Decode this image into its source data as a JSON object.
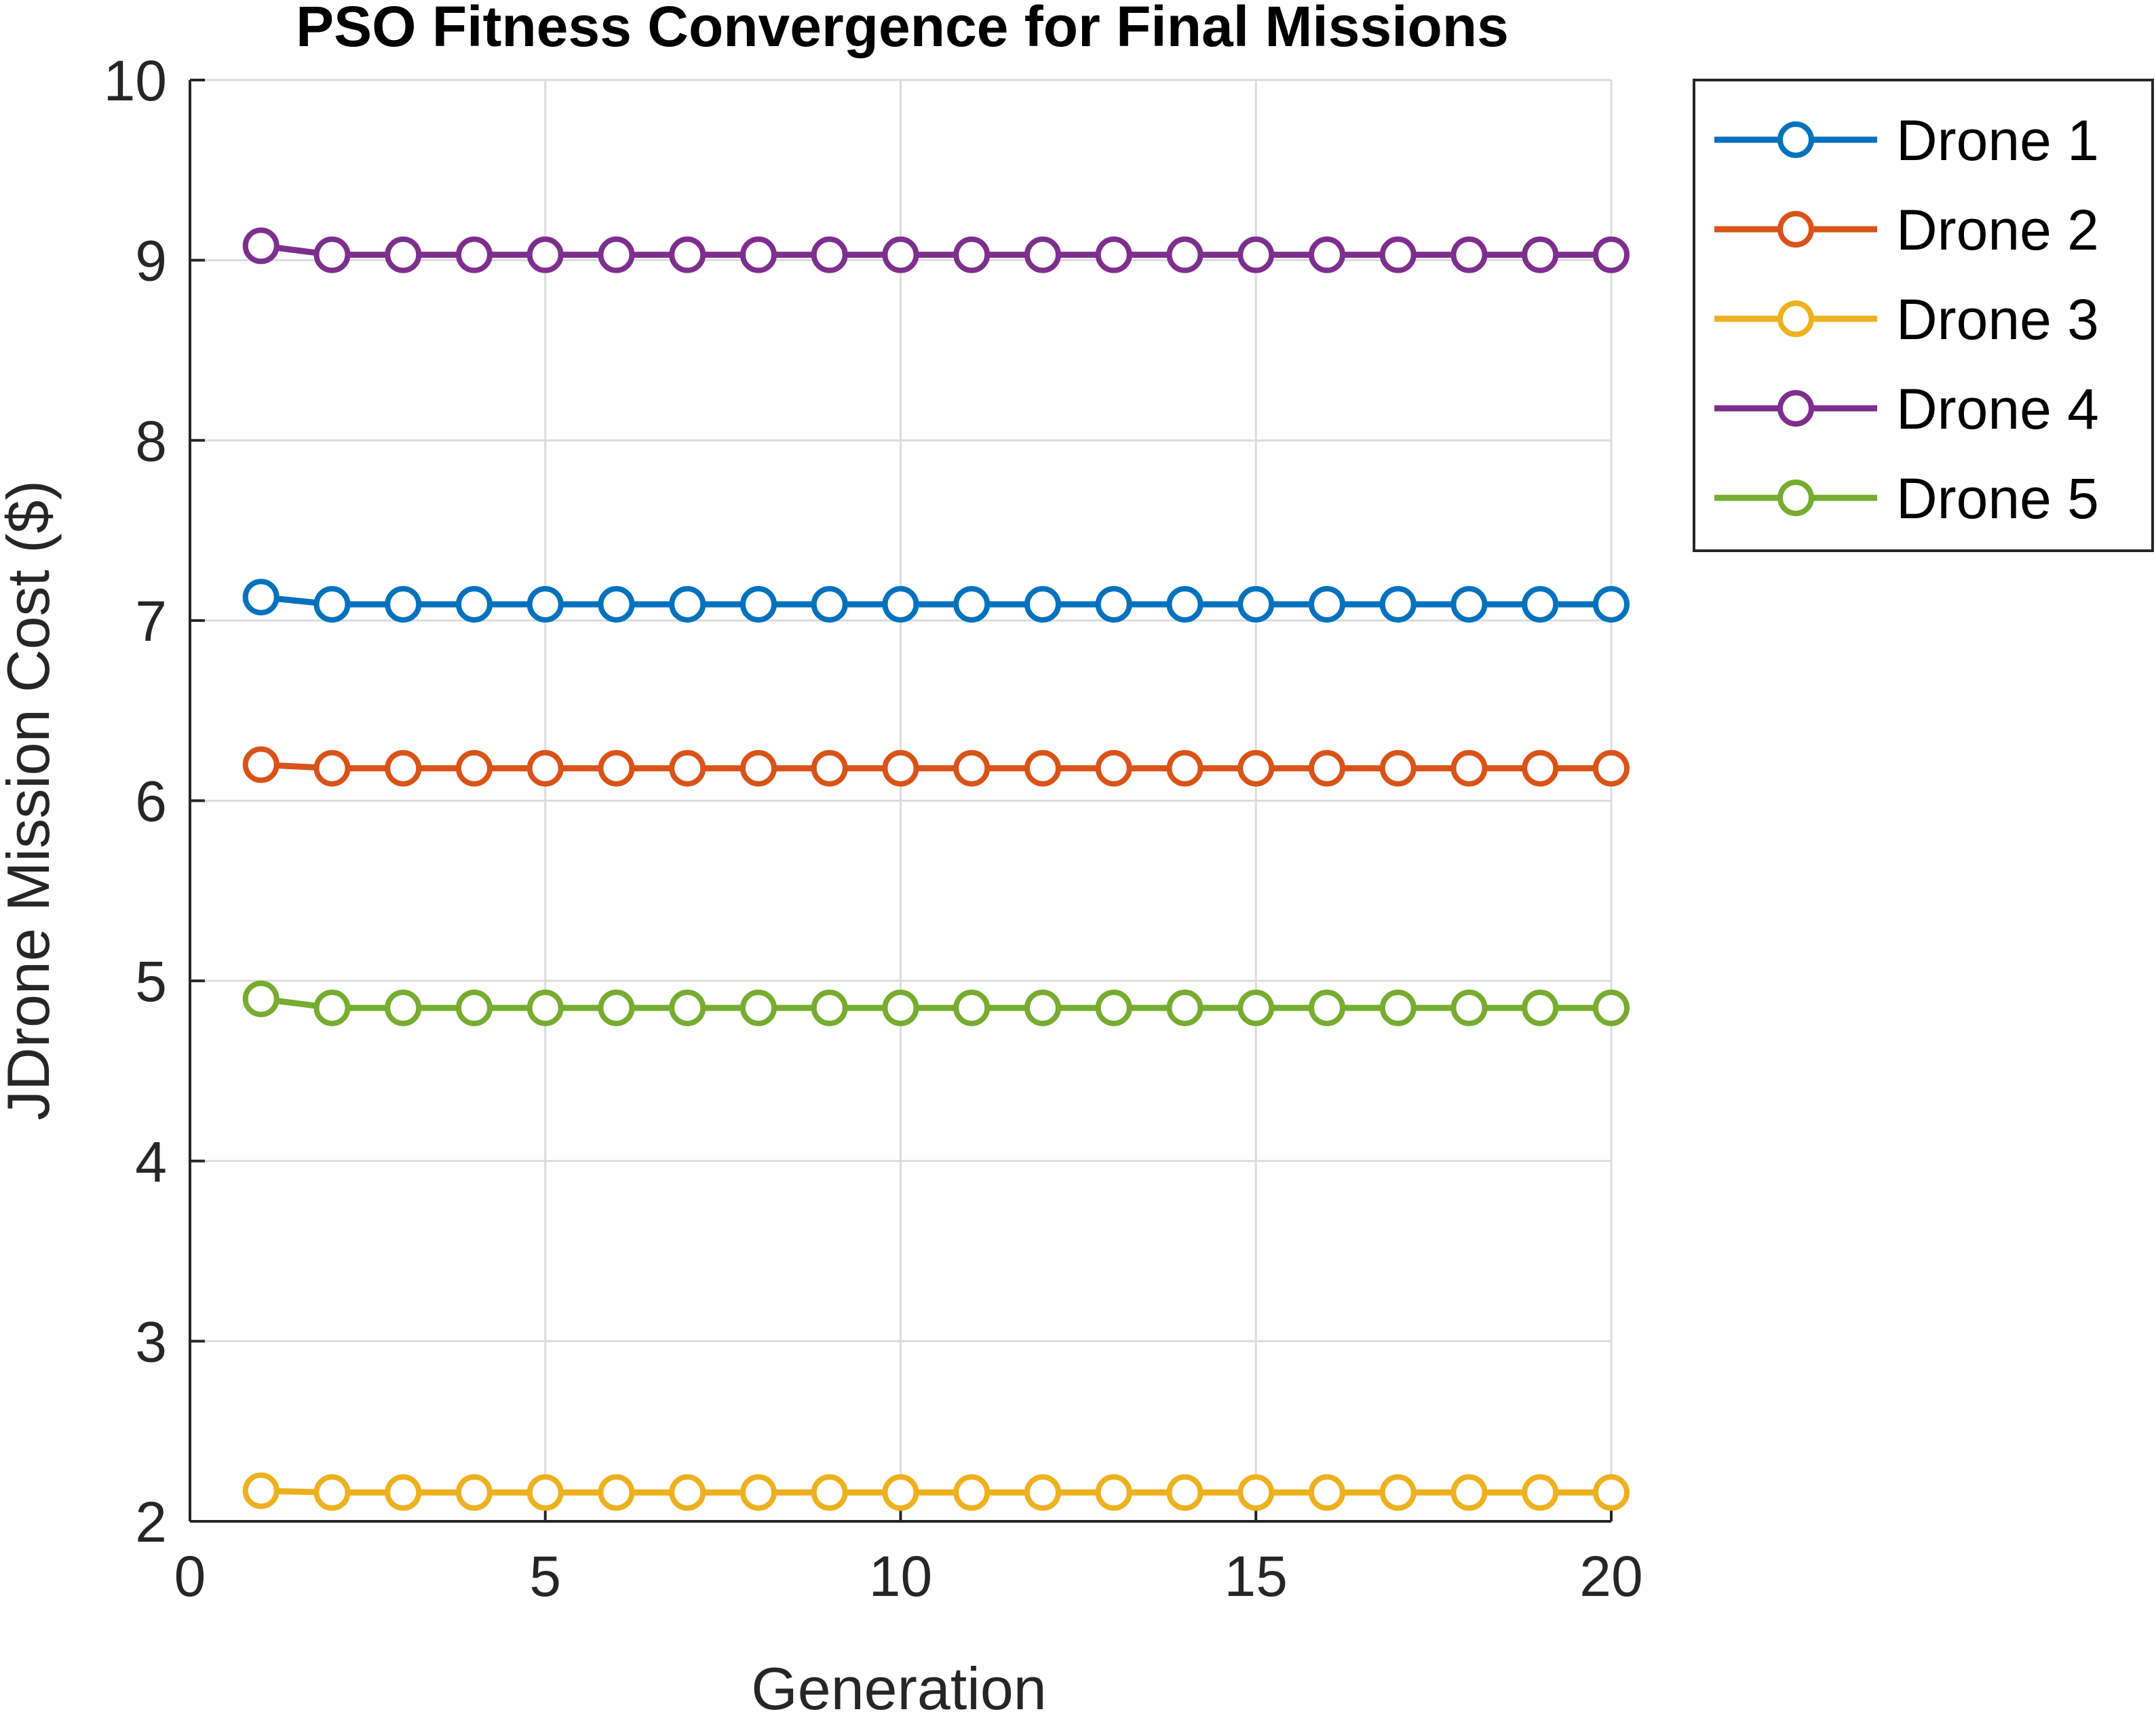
{
  "chart_data": {
    "type": "line",
    "title": "PSO Fitness Convergence for Final Missions",
    "xlabel": "Generation",
    "ylabel": "JDrone Mission Cost ($)",
    "xlim": [
      0,
      20
    ],
    "ylim": [
      2,
      10
    ],
    "xticks": [
      0,
      5,
      10,
      15,
      20
    ],
    "yticks": [
      2,
      3,
      4,
      5,
      6,
      7,
      8,
      9,
      10
    ],
    "grid": true,
    "legend_position": "outside-top-right",
    "marker": "circle",
    "x": [
      1,
      2,
      3,
      4,
      5,
      6,
      7,
      8,
      9,
      10,
      11,
      12,
      13,
      14,
      15,
      16,
      17,
      18,
      19,
      20
    ],
    "series": [
      {
        "name": "Drone 1",
        "color": "#0072BD",
        "values": [
          7.13,
          7.09,
          7.09,
          7.09,
          7.09,
          7.09,
          7.09,
          7.09,
          7.09,
          7.09,
          7.09,
          7.09,
          7.09,
          7.09,
          7.09,
          7.09,
          7.09,
          7.09,
          7.09,
          7.09
        ]
      },
      {
        "name": "Drone 2",
        "color": "#D95319",
        "values": [
          6.2,
          6.18,
          6.18,
          6.18,
          6.18,
          6.18,
          6.18,
          6.18,
          6.18,
          6.18,
          6.18,
          6.18,
          6.18,
          6.18,
          6.18,
          6.18,
          6.18,
          6.18,
          6.18,
          6.18
        ]
      },
      {
        "name": "Drone 3",
        "color": "#EDB120",
        "values": [
          2.17,
          2.16,
          2.16,
          2.16,
          2.16,
          2.16,
          2.16,
          2.16,
          2.16,
          2.16,
          2.16,
          2.16,
          2.16,
          2.16,
          2.16,
          2.16,
          2.16,
          2.16,
          2.16,
          2.16
        ]
      },
      {
        "name": "Drone 4",
        "color": "#7E2F8E",
        "values": [
          9.08,
          9.03,
          9.03,
          9.03,
          9.03,
          9.03,
          9.03,
          9.03,
          9.03,
          9.03,
          9.03,
          9.03,
          9.03,
          9.03,
          9.03,
          9.03,
          9.03,
          9.03,
          9.03,
          9.03
        ]
      },
      {
        "name": "Drone 5",
        "color": "#77AC30",
        "values": [
          4.9,
          4.85,
          4.85,
          4.85,
          4.85,
          4.85,
          4.85,
          4.85,
          4.85,
          4.85,
          4.85,
          4.85,
          4.85,
          4.85,
          4.85,
          4.85,
          4.85,
          4.85,
          4.85,
          4.85
        ]
      }
    ]
  }
}
